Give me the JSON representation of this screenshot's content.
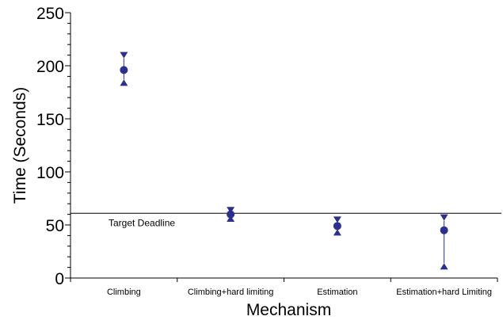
{
  "chart_data": {
    "type": "scatter",
    "xlabel": "Mechanism",
    "ylabel": "Time (Seconds)",
    "ylim": [
      0,
      250
    ],
    "y_ticks": [
      0,
      50,
      100,
      150,
      200,
      250
    ],
    "categories": [
      "Climbing",
      "Climbing+hard limiting",
      "Estimation",
      "Estimation+hard Limiting"
    ],
    "points": [
      {
        "category": "Climbing",
        "mean": 196,
        "min": 187,
        "max": 207
      },
      {
        "category": "Climbing+hard limiting",
        "mean": 60,
        "min": 59,
        "max": 61
      },
      {
        "category": "Estimation",
        "mean": 49,
        "min": 46,
        "max": 52
      },
      {
        "category": "Estimation+hard Limiting",
        "mean": 45,
        "min": 14,
        "max": 54
      }
    ],
    "reference_line": {
      "label": "Target Deadline",
      "value": 61
    },
    "grid": false,
    "colors": {
      "marker": "#2b2f8f",
      "axis": "#000000",
      "line": "#2b2f8f"
    }
  }
}
